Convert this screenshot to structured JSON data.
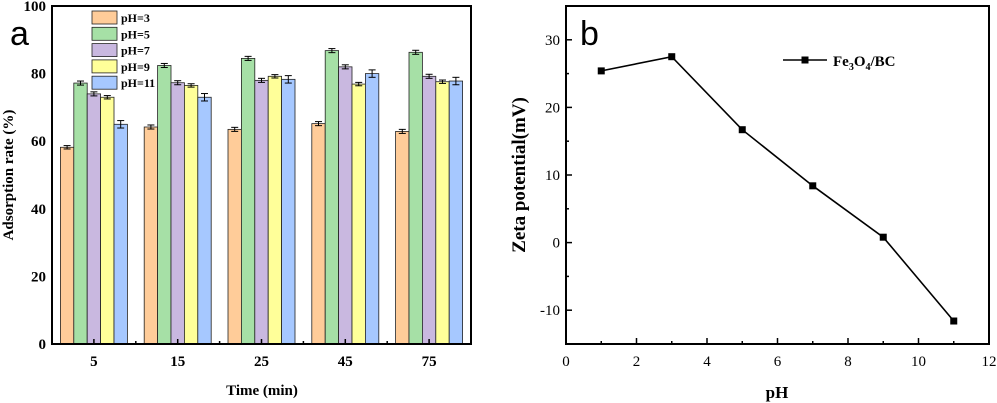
{
  "chart_data": [
    {
      "type": "bar",
      "panel_label": "a",
      "xlabel": "Time (min)",
      "ylabel": "Adsorption rate (%)",
      "ylim": [
        0,
        100
      ],
      "yticks": [
        0,
        20,
        40,
        60,
        80,
        100
      ],
      "categories": [
        "5",
        "15",
        "25",
        "45",
        "75"
      ],
      "legend_position": "top-left",
      "grid": false,
      "series": [
        {
          "name": "pH=3",
          "color": "#FFCC99",
          "values": [
            58.2,
            64.2,
            63.5,
            65.2,
            62.9
          ],
          "errors": [
            0.5,
            0.6,
            0.6,
            0.6,
            0.6
          ]
        },
        {
          "name": "pH=5",
          "color": "#A6E0A6",
          "values": [
            77.2,
            82.4,
            84.5,
            86.8,
            86.3
          ],
          "errors": [
            0.6,
            0.6,
            0.6,
            0.6,
            0.6
          ]
        },
        {
          "name": "pH=7",
          "color": "#C9B8E0",
          "values": [
            74.0,
            77.3,
            78.0,
            82.0,
            79.2
          ],
          "errors": [
            0.6,
            0.6,
            0.6,
            0.6,
            0.6
          ]
        },
        {
          "name": "pH=9",
          "color": "#FFFF99",
          "values": [
            73.0,
            76.5,
            79.2,
            76.9,
            77.6
          ],
          "errors": [
            0.5,
            0.5,
            0.5,
            0.5,
            0.5
          ]
        },
        {
          "name": "pH=11",
          "color": "#A6C8FF",
          "values": [
            65.0,
            73.0,
            78.3,
            80.0,
            77.8
          ],
          "errors": [
            1.1,
            1.1,
            1.1,
            1.1,
            1.1
          ]
        }
      ]
    },
    {
      "type": "line",
      "panel_label": "b",
      "xlabel": "pH",
      "ylabel": "Zeta potential(mV)",
      "xlim": [
        0,
        12
      ],
      "ylim": [
        -15,
        35
      ],
      "xticks": [
        0,
        2,
        4,
        6,
        8,
        10,
        12
      ],
      "yticks": [
        -10,
        0,
        10,
        20,
        30
      ],
      "legend_position": "top-right",
      "grid": false,
      "series": [
        {
          "name": "Fe3O4/BC",
          "legend_parts": [
            "Fe",
            "3",
            "O",
            "4",
            "/BC"
          ],
          "color": "#000000",
          "marker": "square",
          "x": [
            1,
            3,
            5,
            7,
            9,
            11
          ],
          "y": [
            25.4,
            27.5,
            16.7,
            8.4,
            0.8,
            -11.6
          ]
        }
      ]
    }
  ]
}
